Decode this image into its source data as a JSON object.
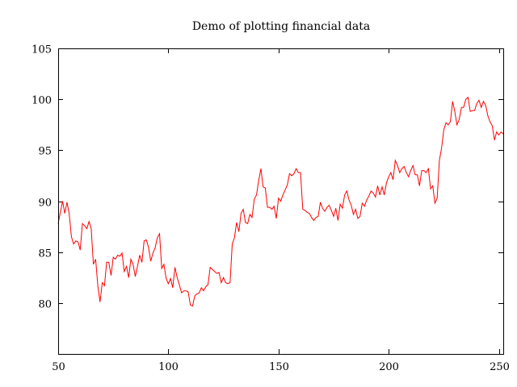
{
  "chart_data": {
    "type": "line",
    "title": "Demo of plotting financial data",
    "xlabel": "",
    "ylabel": "",
    "xlim": [
      50,
      252
    ],
    "ylim": [
      75,
      105
    ],
    "x_ticks": [
      50,
      100,
      150,
      200,
      250
    ],
    "y_ticks": [
      80,
      85,
      90,
      95,
      100,
      105
    ],
    "grid": false,
    "legend": "none",
    "series": [
      {
        "color": "#ff0000",
        "x_start": 50,
        "x_step": 1,
        "values": [
          87.8,
          88.9,
          90.0,
          88.8,
          89.9,
          88.8,
          86.5,
          85.8,
          86.1,
          86.0,
          85.2,
          87.8,
          87.6,
          87.3,
          88.0,
          87.3,
          83.8,
          84.3,
          81.7,
          80.1,
          82.0,
          81.7,
          84.0,
          84.0,
          82.7,
          84.5,
          84.3,
          84.7,
          84.6,
          84.9,
          83.1,
          83.6,
          82.5,
          84.3,
          83.8,
          82.6,
          83.6,
          84.7,
          84.0,
          86.1,
          86.2,
          85.5,
          84.1,
          84.9,
          85.4,
          86.4,
          86.8,
          83.4,
          83.8,
          82.4,
          81.9,
          82.4,
          81.5,
          83.5,
          82.5,
          81.8,
          81.0,
          81.2,
          81.2,
          81.1,
          79.8,
          79.7,
          80.7,
          80.9,
          81.0,
          81.5,
          81.2,
          81.6,
          81.8,
          83.5,
          83.3,
          83.1,
          82.9,
          83.0,
          82.0,
          82.5,
          82.0,
          81.9,
          82.0,
          85.8,
          86.4,
          87.9,
          87.0,
          88.8,
          89.2,
          87.9,
          87.8,
          88.7,
          88.4,
          90.2,
          90.6,
          92.0,
          93.2,
          91.4,
          91.3,
          89.4,
          89.4,
          89.2,
          89.5,
          88.3,
          90.3,
          90.0,
          90.6,
          91.1,
          91.6,
          92.7,
          92.5,
          92.7,
          93.2,
          92.8,
          92.8,
          89.2,
          89.1,
          88.9,
          88.8,
          88.4,
          88.1,
          88.4,
          88.5,
          89.9,
          89.3,
          89.0,
          89.4,
          89.6,
          89.1,
          88.5,
          89.3,
          88.1,
          89.7,
          89.3,
          90.6,
          91.0,
          90.1,
          89.6,
          88.7,
          89.2,
          88.3,
          88.5,
          89.8,
          89.5,
          90.1,
          90.5,
          91.0,
          90.8,
          90.4,
          91.5,
          90.6,
          91.4,
          90.6,
          91.8,
          92.4,
          92.8,
          92.1,
          94.0,
          93.5,
          92.8,
          93.2,
          93.4,
          92.8,
          92.4,
          93.0,
          93.5,
          92.6,
          92.6,
          91.5,
          93.0,
          93.0,
          92.8,
          93.2,
          91.2,
          91.5,
          89.8,
          90.3,
          94.0,
          95.2,
          97.0,
          97.7,
          97.5,
          97.8,
          99.8,
          98.8,
          97.5,
          98.0,
          99.2,
          99.2,
          100.0,
          100.2,
          98.8,
          98.9,
          98.9,
          99.6,
          99.9,
          99.2,
          99.8,
          99.4,
          98.4,
          97.8,
          97.4,
          96.0,
          96.8,
          96.5,
          96.8,
          96.6
        ]
      }
    ]
  }
}
